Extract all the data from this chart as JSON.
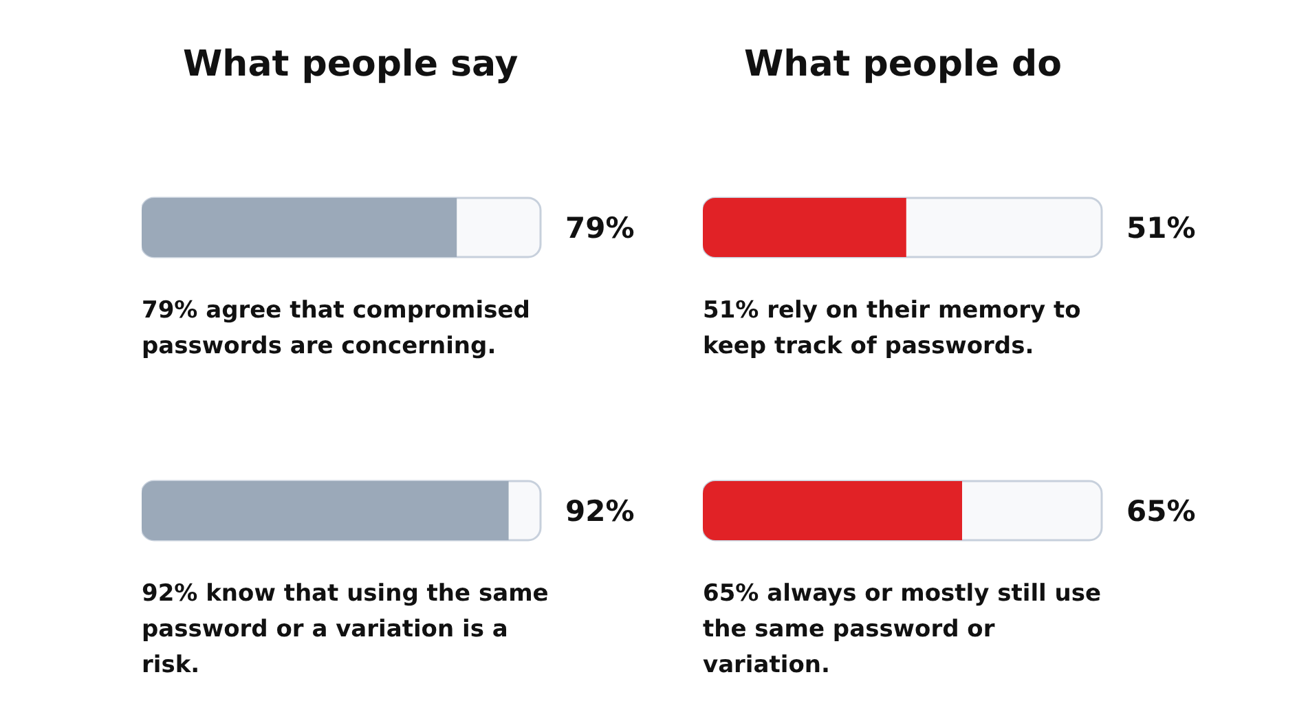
{
  "chart_data": [
    {
      "type": "bar",
      "orientation": "horizontal",
      "title": "What people say",
      "categories": [
        "79% agree that compromised passwords are concerning.",
        "92% know that using the same password or a variation is a risk."
      ],
      "values": [
        79,
        92
      ],
      "value_labels": [
        "79%",
        "92%"
      ],
      "color": "#9ba9b9",
      "xlim": [
        0,
        100
      ],
      "tick_labels": false,
      "grid": false,
      "legend": false
    },
    {
      "type": "bar",
      "orientation": "horizontal",
      "title": "What people do",
      "categories": [
        "51% rely on their memory to keep track of passwords.",
        "65% always or mostly still use the same password or variation."
      ],
      "values": [
        51,
        65
      ],
      "value_labels": [
        "51%",
        "65%"
      ],
      "color": "#e12226",
      "xlim": [
        0,
        100
      ],
      "tick_labels": false,
      "grid": false,
      "legend": false
    }
  ]
}
